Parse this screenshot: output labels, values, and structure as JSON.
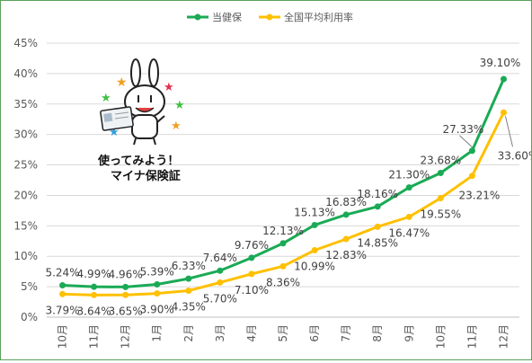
{
  "chart_data": {
    "type": "line",
    "categories": [
      "10月",
      "11月",
      "12月",
      "1月",
      "2月",
      "3月",
      "4月",
      "5月",
      "6月",
      "7月",
      "8月",
      "9月",
      "10月",
      "11月",
      "12月"
    ],
    "series": [
      {
        "name": "当健保",
        "color": "#1aaa55",
        "values": [
          5.24,
          4.99,
          4.96,
          5.39,
          6.33,
          7.64,
          9.76,
          12.13,
          15.13,
          16.83,
          18.16,
          21.3,
          23.68,
          27.33,
          39.1
        ],
        "labels": [
          "5.24%",
          "4.99%",
          "4.96%",
          "5.39%",
          "6.33%",
          "7.64%",
          "9.76%",
          "12.13%",
          "15.13%",
          "16.83%",
          "18.16%",
          "21.30%",
          "23.68%",
          "27.33%",
          "39.10%"
        ]
      },
      {
        "name": "全国平均利用率",
        "color": "#ffc000",
        "values": [
          3.79,
          3.64,
          3.65,
          3.9,
          4.35,
          5.7,
          7.1,
          8.36,
          10.99,
          12.83,
          14.85,
          16.47,
          19.55,
          23.21,
          33.6
        ],
        "labels": [
          "3.79%",
          "3.64%",
          "3.65%",
          "3.90%",
          "4.35%",
          "5.70%",
          "7.10%",
          "8.36%",
          "10.99%",
          "12.83%",
          "14.85%",
          "16.47%",
          "19.55%",
          "23.21%",
          "33.60%"
        ]
      }
    ],
    "yticks": [
      "0%",
      "5%",
      "10%",
      "15%",
      "20%",
      "25%",
      "30%",
      "35%",
      "40%",
      "45%"
    ],
    "ylim": [
      0,
      45
    ],
    "grid": true,
    "legend_position": "top-center"
  },
  "mascot": {
    "caption_line1": "使ってみよう！",
    "caption_line2": "マイナ保険証"
  }
}
